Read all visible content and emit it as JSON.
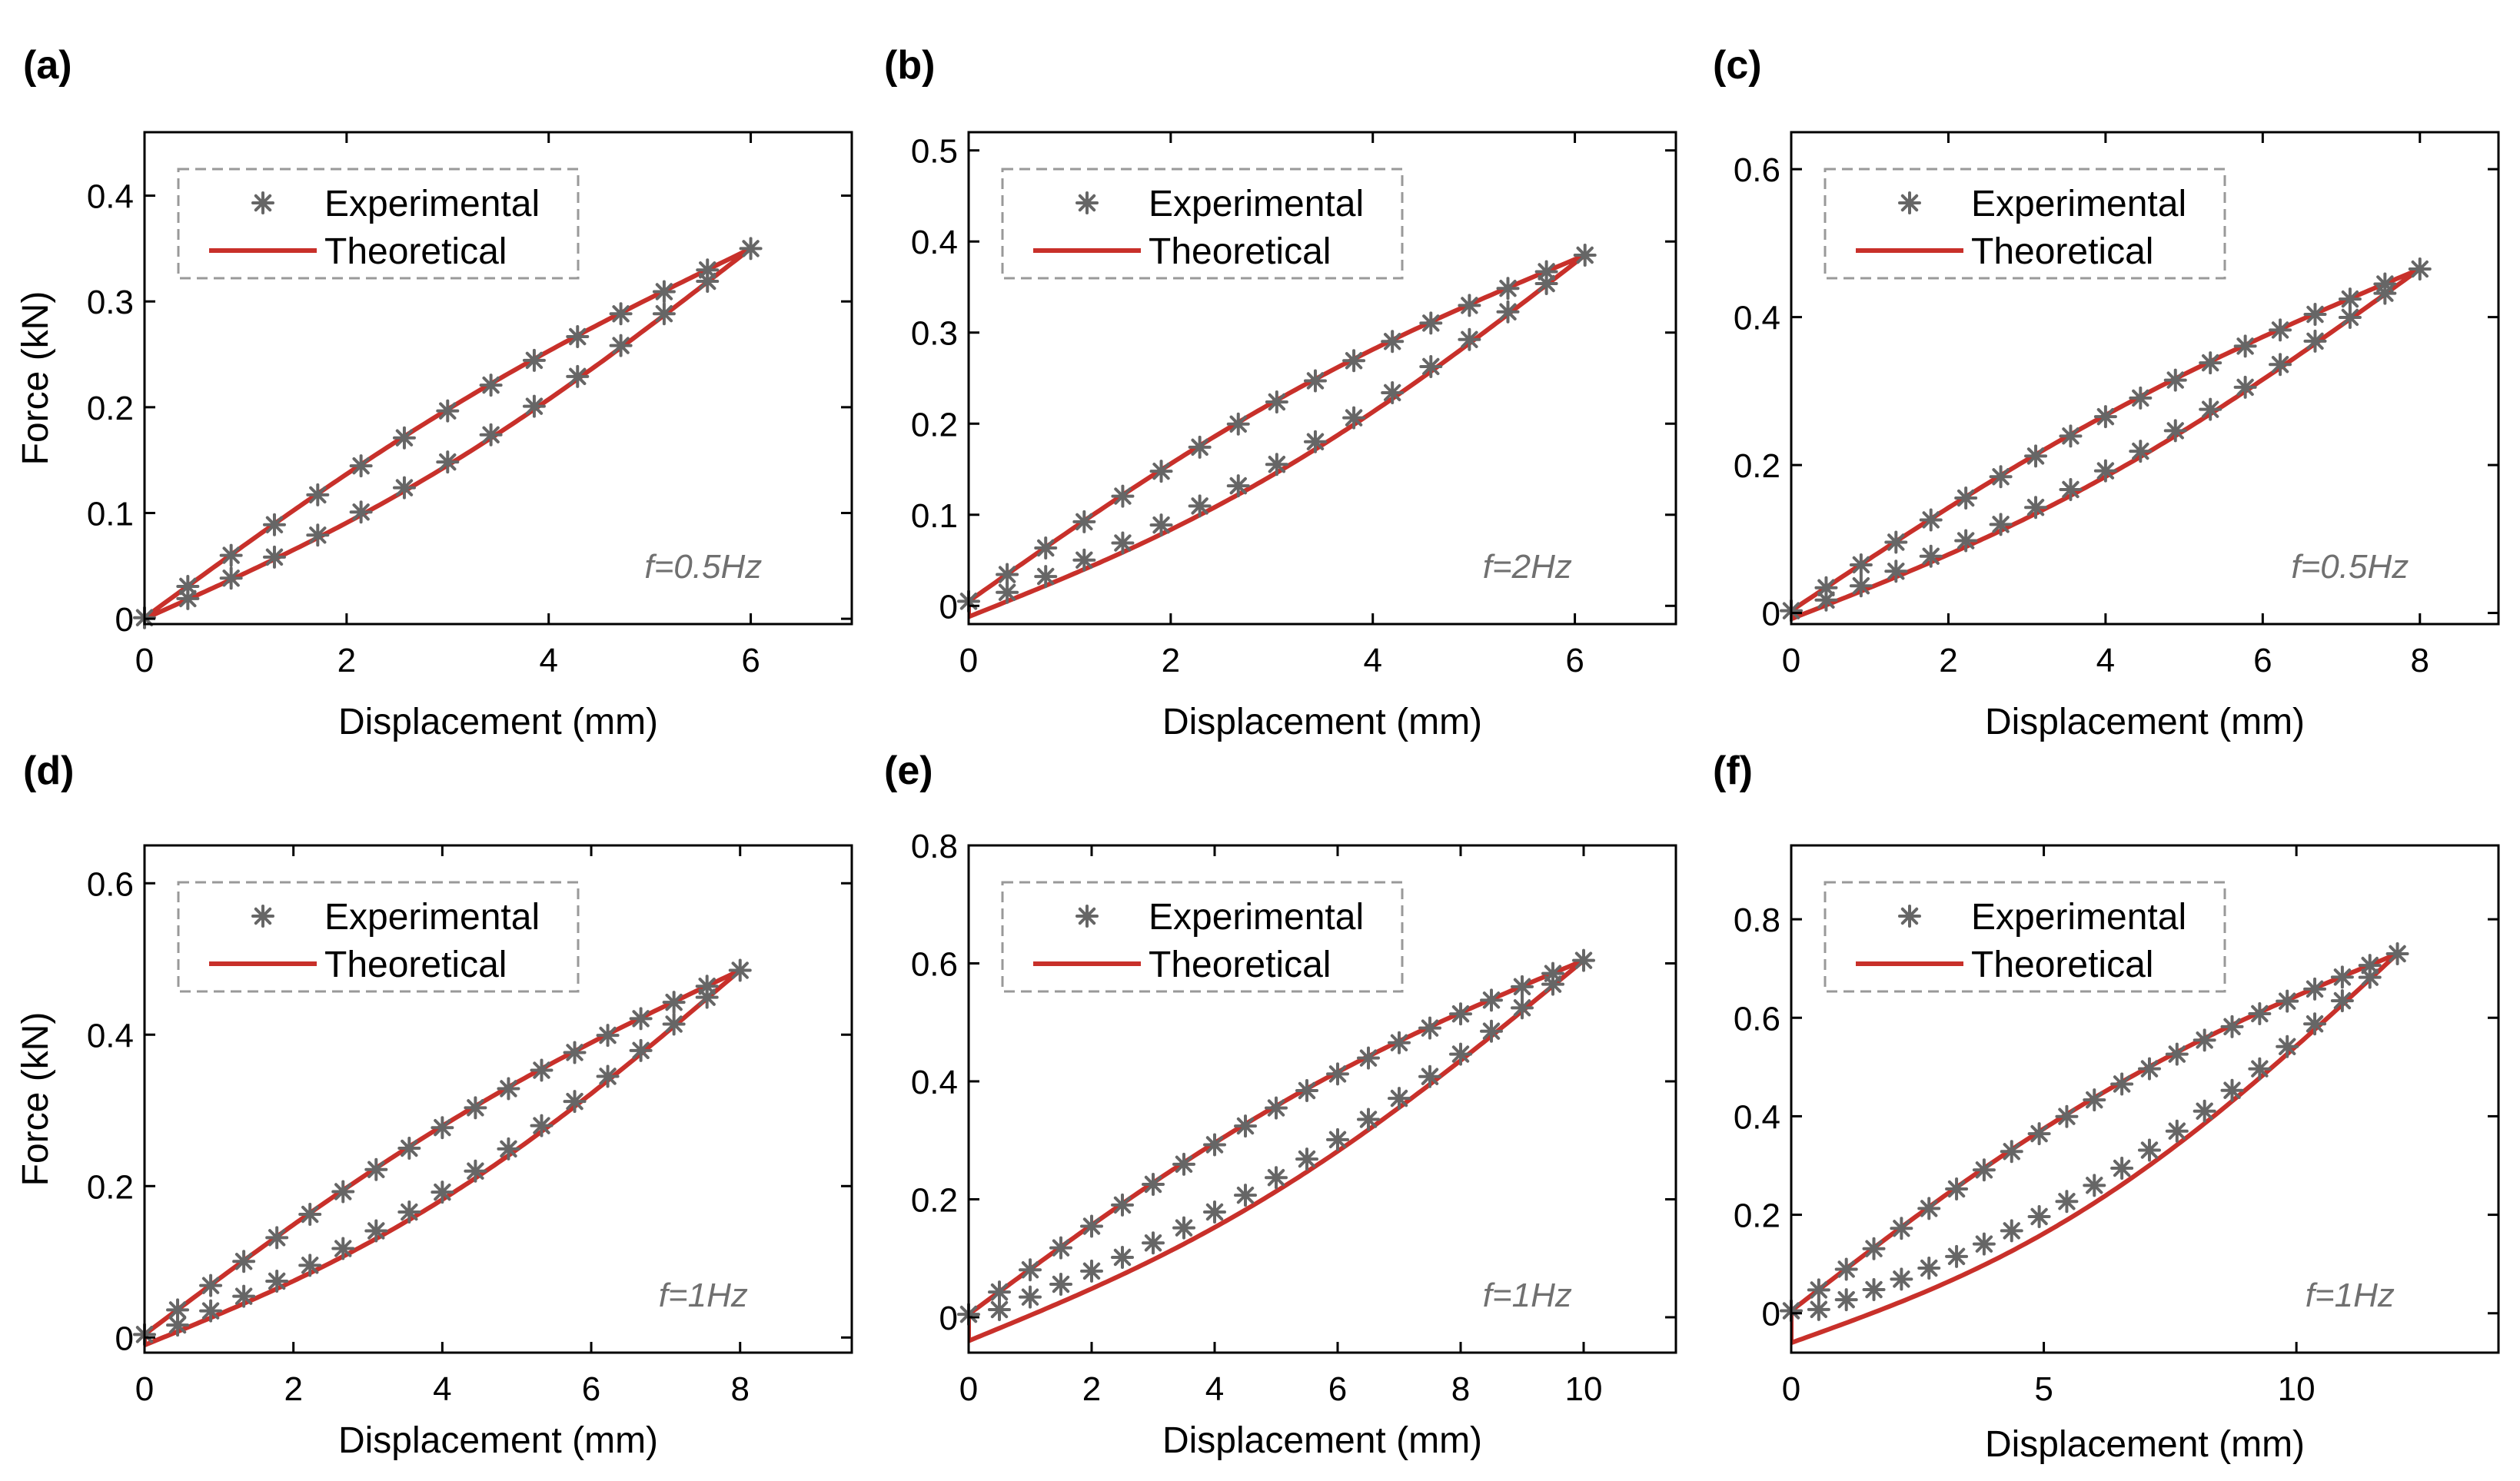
{
  "figure": {
    "background": "#ffffff"
  },
  "colors": {
    "experimental": "#666666",
    "theoretical": "#c8302a",
    "axis": "#000000",
    "annotation": "#707070",
    "legend_border": "#999999"
  },
  "chart_data": [
    {
      "panel": "(a)",
      "type": "scatter",
      "xlabel": "Displacement (mm)",
      "ylabel": "Force (kN)",
      "xlim": [
        0,
        7
      ],
      "ylim": [
        -0.005,
        0.46
      ],
      "xticks": [
        0,
        2,
        4,
        6
      ],
      "yticks": [
        0,
        0.1,
        0.2,
        0.3,
        0.4
      ],
      "legend": [
        "Experimental",
        "Theoretical"
      ],
      "legend_position": "top-left",
      "annotation": "f=0.5Hz",
      "loop": {
        "xmax": 6.0,
        "fmax": 0.35,
        "upper_offset": 0.001,
        "lower_offset": 0.0,
        "upper_bulge": 0.04,
        "lower_bulge": 0.045,
        "n_markers": 14
      }
    },
    {
      "panel": "(b)",
      "type": "scatter",
      "xlabel": "Displacement (mm)",
      "ylabel": "",
      "xlim": [
        0,
        7
      ],
      "ylim": [
        -0.02,
        0.52
      ],
      "xticks": [
        0,
        2,
        4,
        6
      ],
      "yticks": [
        0,
        0.1,
        0.2,
        0.3,
        0.4,
        0.5
      ],
      "legend": [
        "Experimental",
        "Theoretical"
      ],
      "legend_position": "top-left",
      "annotation": "f=2Hz",
      "loop": {
        "xmax": 6.1,
        "fmax": 0.385,
        "upper_offset": 0.005,
        "lower_offset": -0.012,
        "upper_bulge": 0.05,
        "lower_bulge": 0.055,
        "n_markers": 16
      }
    },
    {
      "panel": "(c)",
      "type": "scatter",
      "xlabel": "Displacement (mm)",
      "ylabel": "",
      "xlim": [
        0,
        9
      ],
      "ylim": [
        -0.015,
        0.65
      ],
      "xticks": [
        0,
        2,
        4,
        6,
        8
      ],
      "yticks": [
        0,
        0.2,
        0.4,
        0.6
      ],
      "legend": [
        "Experimental",
        "Theoretical"
      ],
      "legend_position": "top-left",
      "annotation": "f=0.5Hz",
      "loop": {
        "xmax": 8.0,
        "fmax": 0.465,
        "upper_offset": 0.003,
        "lower_offset": -0.008,
        "upper_bulge": 0.045,
        "lower_bulge": 0.05,
        "n_markers": 18
      }
    },
    {
      "panel": "(d)",
      "type": "scatter",
      "xlabel": "Displacement (mm)",
      "ylabel": "Force (kN)",
      "xlim": [
        0,
        9.5
      ],
      "ylim": [
        -0.02,
        0.65
      ],
      "xticks": [
        0,
        2,
        4,
        6,
        8
      ],
      "yticks": [
        0,
        0.2,
        0.4,
        0.6
      ],
      "legend": [
        "Experimental",
        "Theoretical"
      ],
      "legend_position": "top-left",
      "annotation": "f=1Hz",
      "loop": {
        "xmax": 8.0,
        "fmax": 0.485,
        "upper_offset": 0.004,
        "lower_offset": -0.01,
        "upper_bulge": 0.045,
        "lower_bulge": 0.06,
        "n_markers": 18
      }
    },
    {
      "panel": "(e)",
      "type": "scatter",
      "xlabel": "Displacement (mm)",
      "ylabel": "",
      "xlim": [
        0,
        11.5
      ],
      "ylim": [
        -0.06,
        0.8
      ],
      "xticks": [
        0,
        2,
        4,
        6,
        8,
        10
      ],
      "yticks": [
        0,
        0.2,
        0.4,
        0.6,
        0.8
      ],
      "legend": [
        "Experimental",
        "Theoretical"
      ],
      "legend_position": "top-left",
      "annotation": "f=1Hz",
      "loop": {
        "xmax": 10.0,
        "fmax": 0.605,
        "upper_offset": 0.005,
        "lower_offset": -0.04,
        "upper_bulge": 0.055,
        "lower_bulge": 0.06,
        "n_markers": 20
      }
    },
    {
      "panel": "(f)",
      "type": "scatter",
      "xlabel": "Displacement (mm)",
      "ylabel": "",
      "xlim": [
        0,
        14
      ],
      "ylim": [
        -0.08,
        0.95
      ],
      "xticks": [
        0,
        5,
        10
      ],
      "yticks": [
        0,
        0.2,
        0.4,
        0.6,
        0.8
      ],
      "legend": [
        "Experimental",
        "Theoretical"
      ],
      "legend_position": "top-left",
      "annotation": "f=1Hz",
      "loop": {
        "xmax": 12.0,
        "fmax": 0.73,
        "upper_offset": 0.005,
        "lower_offset": -0.06,
        "upper_bulge": 0.06,
        "lower_bulge": 0.08,
        "n_markers": 22
      }
    }
  ]
}
